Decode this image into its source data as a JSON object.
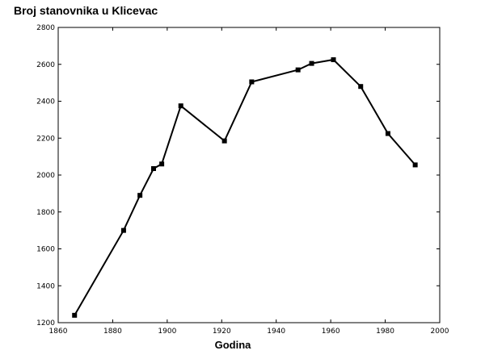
{
  "chart_data": {
    "type": "line",
    "title": "Broj stanovnika u Klicevac",
    "xlabel": "Godina",
    "ylabel": "",
    "xlim": [
      1860,
      2000
    ],
    "ylim": [
      1200,
      2800
    ],
    "xticks": [
      1860,
      1880,
      1900,
      1920,
      1940,
      1960,
      1980,
      2000
    ],
    "yticks": [
      1200,
      1400,
      1600,
      1800,
      2000,
      2200,
      2400,
      2600,
      2800
    ],
    "grid": false,
    "series": [
      {
        "x": [
          1866,
          1884,
          1890,
          1895,
          1898,
          1905,
          1921,
          1931,
          1948,
          1953,
          1961,
          1971,
          1981,
          1991
        ],
        "values": [
          1240,
          1700,
          1890,
          2035,
          2060,
          2375,
          2185,
          2505,
          2570,
          2605,
          2625,
          2480,
          2225,
          2055
        ]
      }
    ],
    "colors": {
      "line": "#000000",
      "marker": "#000000",
      "axis": "#000000"
    }
  }
}
